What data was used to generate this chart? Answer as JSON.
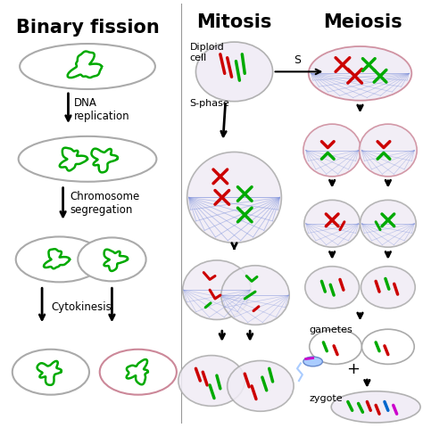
{
  "bg_color": "#ffffff",
  "section_titles": {
    "binary_fission": "Binary fission",
    "mitosis": "Mitosis",
    "meiosis": "Meiosis"
  },
  "labels": {
    "dna_replication": "DNA\nreplication",
    "chromosome_segregation": "Chromosome\nsegregation",
    "cytokinesis": "Cytokinesis",
    "diploid_cell": "Diploid\ncell",
    "s_phase": "S-phase",
    "s_arrow": "S",
    "gametes": "gametes",
    "zygote": "zygote",
    "plus": "+"
  },
  "colors": {
    "green": "#00aa00",
    "red": "#cc0000",
    "blue": "#3366cc",
    "pink": "#dd88aa",
    "magenta": "#cc00cc",
    "cell_outline_gray": "#aaaaaa",
    "cell_fill": "#f0ecf5",
    "cell_outline_pink": "#cc8899",
    "spindle_blue": "#8899dd",
    "text_black": "#000000",
    "divider": "#999999"
  }
}
